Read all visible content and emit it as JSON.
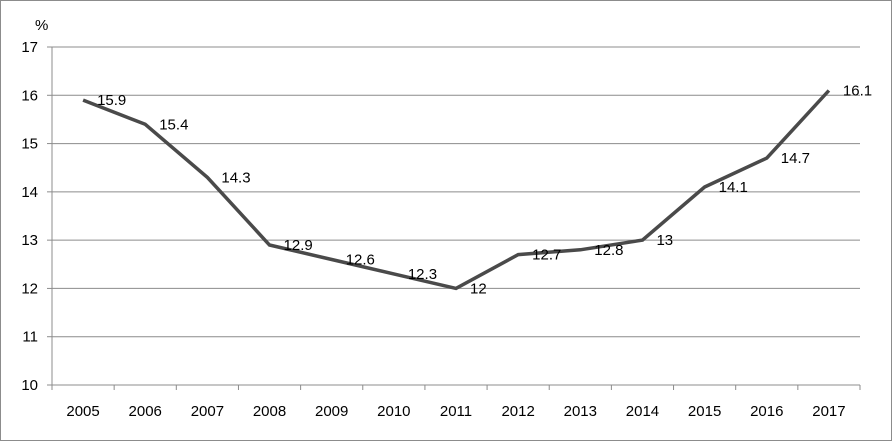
{
  "chart_data": {
    "type": "line",
    "x": [
      "2005",
      "2006",
      "2007",
      "2008",
      "2009",
      "2010",
      "2011",
      "2012",
      "2013",
      "2014",
      "2015",
      "2016",
      "2017"
    ],
    "series": [
      {
        "values": [
          15.9,
          15.4,
          14.3,
          12.9,
          12.6,
          12.3,
          12,
          12.7,
          12.8,
          13,
          14.1,
          14.7,
          16.1
        ],
        "data_labels": [
          "15.9",
          "15.4",
          "14.3",
          "12.9",
          "12.6",
          "12.3",
          "12",
          "12.7",
          "12.8",
          "13",
          "14.1",
          "14.7",
          "16.1"
        ],
        "color": "#4a4a4a"
      }
    ],
    "ylabel": "%",
    "ylim": [
      10,
      17
    ],
    "yticks": [
      10,
      11,
      12,
      13,
      14,
      15,
      16,
      17
    ],
    "ytick_labels": [
      "10",
      "11",
      "12",
      "13",
      "14",
      "15",
      "16",
      "17"
    ],
    "grid": true,
    "legend": "none",
    "colors": {
      "line": "#4a4a4a",
      "grid": "#8c8c8c",
      "axis": "#8c8c8c",
      "text": "#000000"
    }
  }
}
